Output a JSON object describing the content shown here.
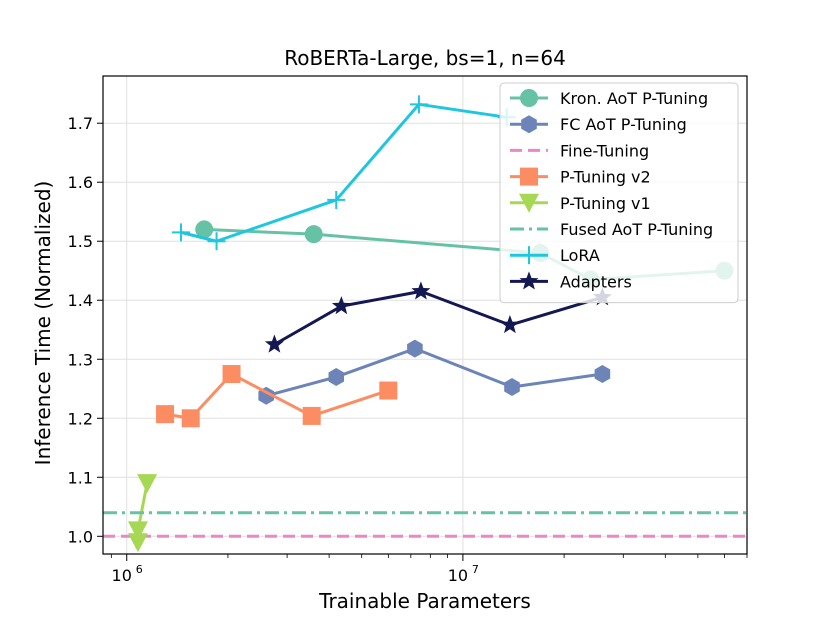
{
  "chart_data": {
    "type": "line",
    "title": "RoBERTa-Large, bs=1, n=64",
    "xlabel": "Trainable Parameters",
    "ylabel": "Inference Time (Normalized)",
    "x_scale": "log",
    "xlim": [
      850000,
      70000000
    ],
    "ylim": [
      0.97,
      1.78
    ],
    "grid": true,
    "legend_position": "top-right",
    "x_tick_labels": [
      {
        "value": 1000000,
        "base": "10",
        "exp": "6"
      },
      {
        "value": 10000000,
        "base": "10",
        "exp": "7"
      }
    ],
    "y_ticks": [
      1.0,
      1.1,
      1.2,
      1.3,
      1.4,
      1.5,
      1.6,
      1.7
    ],
    "series": [
      {
        "name": "Kron. AoT P-Tuning",
        "color": "#66c2a5",
        "marker": "circle",
        "line": "solid",
        "points": [
          [
            1700000,
            1.52
          ],
          [
            3600000,
            1.512
          ],
          [
            17000000,
            1.48
          ],
          [
            24000000,
            1.435
          ],
          [
            60000000,
            1.45
          ]
        ]
      },
      {
        "name": "FC AoT P-Tuning",
        "color": "#6c84b8",
        "marker": "hexagon",
        "line": "solid",
        "points": [
          [
            2600000,
            1.238
          ],
          [
            4200000,
            1.27
          ],
          [
            7200000,
            1.318
          ],
          [
            14000000,
            1.253
          ],
          [
            26000000,
            1.275
          ]
        ]
      },
      {
        "name": "Fine-Tuning",
        "color": "#e78ac3",
        "marker": "none",
        "line": "dashed",
        "hline": 1.0
      },
      {
        "name": "P-Tuning v2",
        "color": "#fc8d62",
        "marker": "square",
        "line": "solid",
        "points": [
          [
            1300000,
            1.207
          ],
          [
            1550000,
            1.2
          ],
          [
            2050000,
            1.275
          ],
          [
            3550000,
            1.204
          ],
          [
            6000000,
            1.247
          ]
        ]
      },
      {
        "name": "P-Tuning v1",
        "color": "#a6d854",
        "marker": "triangle-down",
        "line": "solid",
        "points": [
          [
            1150000,
            1.09
          ],
          [
            1080000,
            1.01
          ],
          [
            1080000,
            0.99
          ]
        ]
      },
      {
        "name": "Fused AoT P-Tuning",
        "color": "#66c2a5",
        "marker": "none",
        "line": "dashdot",
        "hline": 1.04
      },
      {
        "name": "LoRA",
        "color": "#1fc6e0",
        "marker": "plus",
        "line": "solid",
        "points": [
          [
            1450000,
            1.515
          ],
          [
            1850000,
            1.5
          ],
          [
            4200000,
            1.57
          ],
          [
            7400000,
            1.732
          ],
          [
            13500000,
            1.71
          ]
        ]
      },
      {
        "name": "Adapters",
        "color": "#141852",
        "marker": "star",
        "line": "solid",
        "points": [
          [
            2750000,
            1.325
          ],
          [
            4350000,
            1.39
          ],
          [
            7500000,
            1.415
          ],
          [
            13800000,
            1.358
          ],
          [
            26000000,
            1.405
          ]
        ]
      }
    ]
  }
}
